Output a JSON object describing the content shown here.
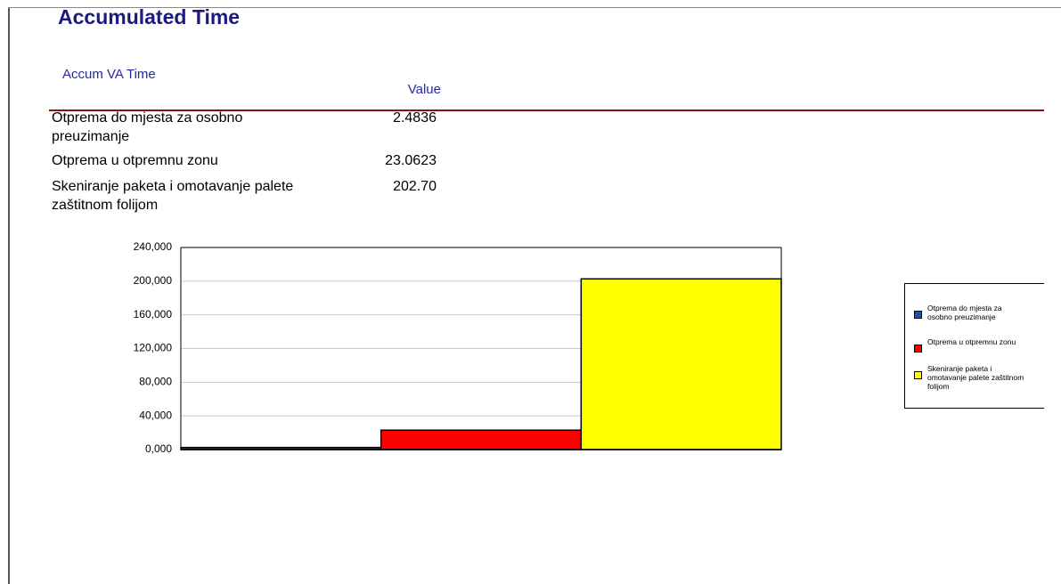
{
  "header": {
    "title": "Accumulated Time"
  },
  "section": {
    "title": "Accum VA Time"
  },
  "table": {
    "columns": [
      "Value"
    ],
    "rows": [
      [
        "Otprema do mjesta za osobno preuzimanje",
        "2.4836"
      ],
      [
        "Otprema u otpremnu zonu",
        "23.0623"
      ],
      [
        "Skeniranje paketa i omotavanje palete zaštitnom folijom",
        "202.70"
      ]
    ]
  },
  "chart_data": {
    "type": "bar",
    "series": [
      {
        "name": "Otprema do mjesta za osobno preuzimanje",
        "color": "#1f4fb4",
        "values": [
          2.4836
        ]
      },
      {
        "name": "Otprema u otpremnu zonu",
        "color": "#ff0000",
        "values": [
          23.0623
        ]
      },
      {
        "name": "Skeniranje paketa i omotavanje palete zaštitnom folijom",
        "color": "#ffff00",
        "values": [
          202.7
        ]
      }
    ],
    "ylim": [
      0,
      240
    ],
    "yticks": [
      {
        "value": 0,
        "label": "0,000"
      },
      {
        "value": 40,
        "label": "40,000"
      },
      {
        "value": 80,
        "label": "80,000"
      },
      {
        "value": 120,
        "label": "120,000"
      },
      {
        "value": 160,
        "label": "160,000"
      },
      {
        "value": 200,
        "label": "200,000"
      },
      {
        "value": 240,
        "label": "240,000"
      }
    ],
    "grid": true,
    "legend": "right"
  }
}
